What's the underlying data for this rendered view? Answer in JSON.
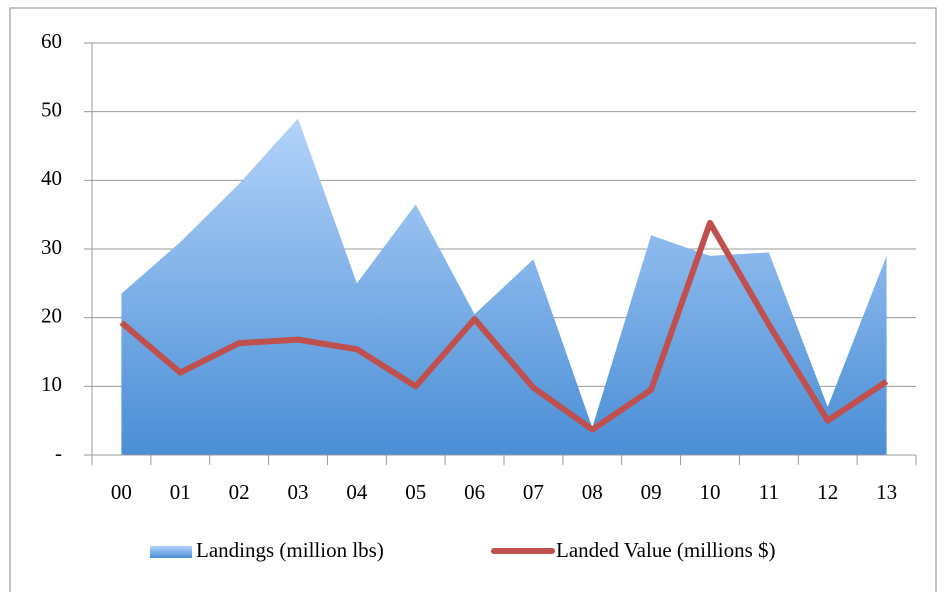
{
  "chart_data": {
    "type": "area",
    "categories": [
      "00",
      "01",
      "02",
      "03",
      "04",
      "05",
      "06",
      "07",
      "08",
      "09",
      "10",
      "11",
      "12",
      "13"
    ],
    "series": [
      {
        "name": "Landings (million lbs)",
        "type": "area",
        "color": "#5b9bd5",
        "values": [
          23.5,
          31,
          39.5,
          49,
          25,
          36.5,
          20.5,
          28.5,
          4,
          32,
          29,
          29.5,
          7,
          29
        ]
      },
      {
        "name": "Landed Value (millions $)",
        "type": "line",
        "color": "#c0504d",
        "values": [
          19.3,
          12,
          16.3,
          16.8,
          15.4,
          10,
          19.8,
          9.8,
          3.7,
          9.5,
          33.8,
          19,
          5,
          10.7
        ]
      }
    ],
    "ylim": [
      0,
      60
    ],
    "yticks": [
      {
        "value": 0,
        "label": "-"
      },
      10,
      20,
      30,
      40,
      50,
      60
    ],
    "grid": true,
    "legend": "bottom"
  }
}
